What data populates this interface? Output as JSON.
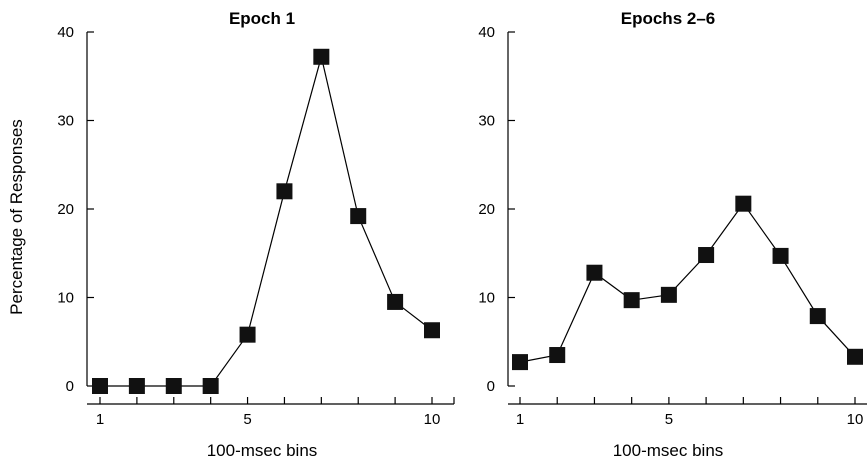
{
  "chart_data": [
    {
      "type": "line",
      "title": "Epoch 1",
      "xlabel": "100-msec bins",
      "ylabel": "Percentage of Responses",
      "xlim": [
        1,
        10
      ],
      "ylim": [
        0,
        40
      ],
      "x_ticks": [
        1,
        5,
        10
      ],
      "y_ticks": [
        0,
        10,
        20,
        30,
        40
      ],
      "grid": false,
      "series": [
        {
          "x": [
            1,
            2,
            3,
            4,
            5,
            6,
            7,
            8,
            9,
            10
          ],
          "y": [
            0,
            0,
            0,
            0,
            5.8,
            22.0,
            37.2,
            19.2,
            9.5,
            6.3
          ]
        }
      ]
    },
    {
      "type": "line",
      "title": "Epochs 2–6",
      "xlabel": "100-msec bins",
      "ylabel": "",
      "xlim": [
        1,
        10
      ],
      "ylim": [
        0,
        40
      ],
      "x_ticks": [
        1,
        5,
        10
      ],
      "y_ticks": [
        0,
        10,
        20,
        30,
        40
      ],
      "grid": false,
      "series": [
        {
          "x": [
            1,
            2,
            3,
            4,
            5,
            6,
            7,
            8,
            9,
            10
          ],
          "y": [
            2.7,
            3.5,
            12.8,
            9.7,
            10.3,
            14.8,
            20.6,
            14.7,
            7.9,
            3.3
          ]
        }
      ]
    }
  ]
}
